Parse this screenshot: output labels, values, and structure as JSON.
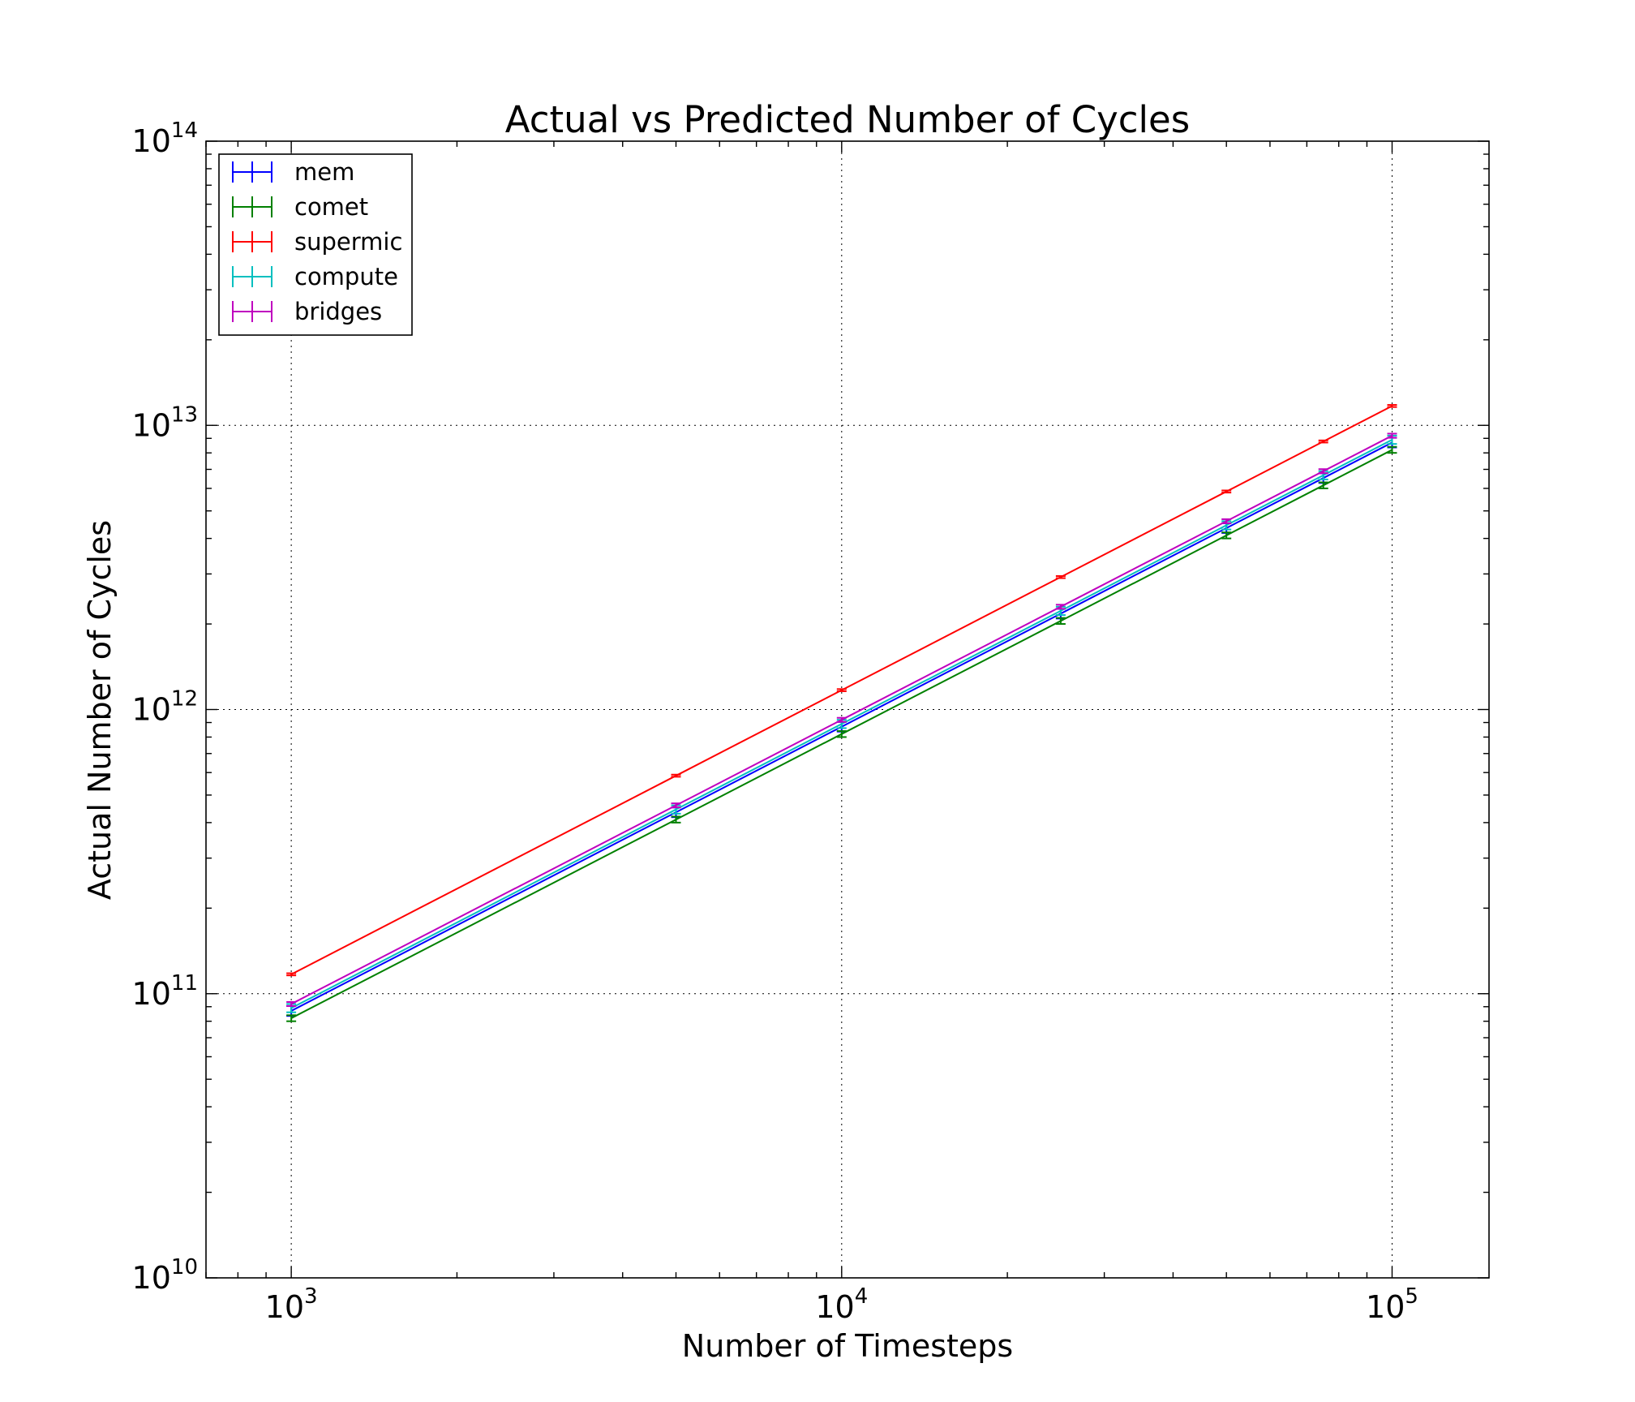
{
  "chart_data": {
    "type": "line",
    "title": "Actual vs Predicted Number of Cycles",
    "xlabel": "Number of Timesteps",
    "ylabel": "Actual Number of Cycles",
    "xscale": "log",
    "yscale": "log",
    "xlim": [
      700,
      150000
    ],
    "ylim": [
      10000000000,
      100000000000000
    ],
    "grid": true,
    "legend_position": "top-left",
    "x_ticks": [
      {
        "base": "10",
        "exp": "3",
        "value": 1000
      },
      {
        "base": "10",
        "exp": "4",
        "value": 10000
      },
      {
        "base": "10",
        "exp": "5",
        "value": 100000
      }
    ],
    "y_ticks": [
      {
        "base": "10",
        "exp": "10",
        "value": 10000000000
      },
      {
        "base": "10",
        "exp": "11",
        "value": 100000000000
      },
      {
        "base": "10",
        "exp": "12",
        "value": 1000000000000
      },
      {
        "base": "10",
        "exp": "13",
        "value": 10000000000000
      },
      {
        "base": "10",
        "exp": "14",
        "value": 100000000000000
      }
    ],
    "x": [
      1000,
      5000,
      10000,
      25000,
      50000,
      75000,
      100000
    ],
    "series": [
      {
        "name": "mem",
        "color": "#0000ff",
        "values": [
          87000000000,
          435000000000,
          870000000000,
          2175000000000,
          4350000000000,
          6525000000000,
          8700000000000
        ],
        "errors": [
          3500000000,
          17000000000,
          34000000000,
          85000000000,
          170000000000,
          255000000000,
          340000000000
        ]
      },
      {
        "name": "comet",
        "color": "#008000",
        "values": [
          82000000000,
          410000000000,
          820000000000,
          2050000000000,
          4100000000000,
          6150000000000,
          8200000000000
        ],
        "errors": [
          2000000000,
          10000000000,
          20000000000,
          50000000000,
          100000000000,
          150000000000,
          200000000000
        ]
      },
      {
        "name": "supermic",
        "color": "#ff0000",
        "values": [
          117000000000,
          585000000000,
          1170000000000,
          2925000000000,
          5850000000000,
          8775000000000,
          11700000000000
        ],
        "errors": [
          1000000000,
          5000000000,
          10000000000,
          25000000000,
          50000000000,
          75000000000,
          100000000000
        ]
      },
      {
        "name": "compute",
        "color": "#00bfbf",
        "values": [
          89000000000,
          445000000000,
          890000000000,
          2225000000000,
          4450000000000,
          6675000000000,
          8900000000000
        ],
        "errors": [
          3000000000,
          15000000000,
          30000000000,
          75000000000,
          150000000000,
          225000000000,
          300000000000
        ]
      },
      {
        "name": "bridges",
        "color": "#bf00bf",
        "values": [
          92000000000,
          460000000000,
          920000000000,
          2300000000000,
          4600000000000,
          6900000000000,
          9200000000000
        ],
        "errors": [
          1500000000,
          7500000000,
          15000000000,
          37500000000,
          75000000000,
          112500000000,
          150000000000
        ]
      }
    ]
  }
}
